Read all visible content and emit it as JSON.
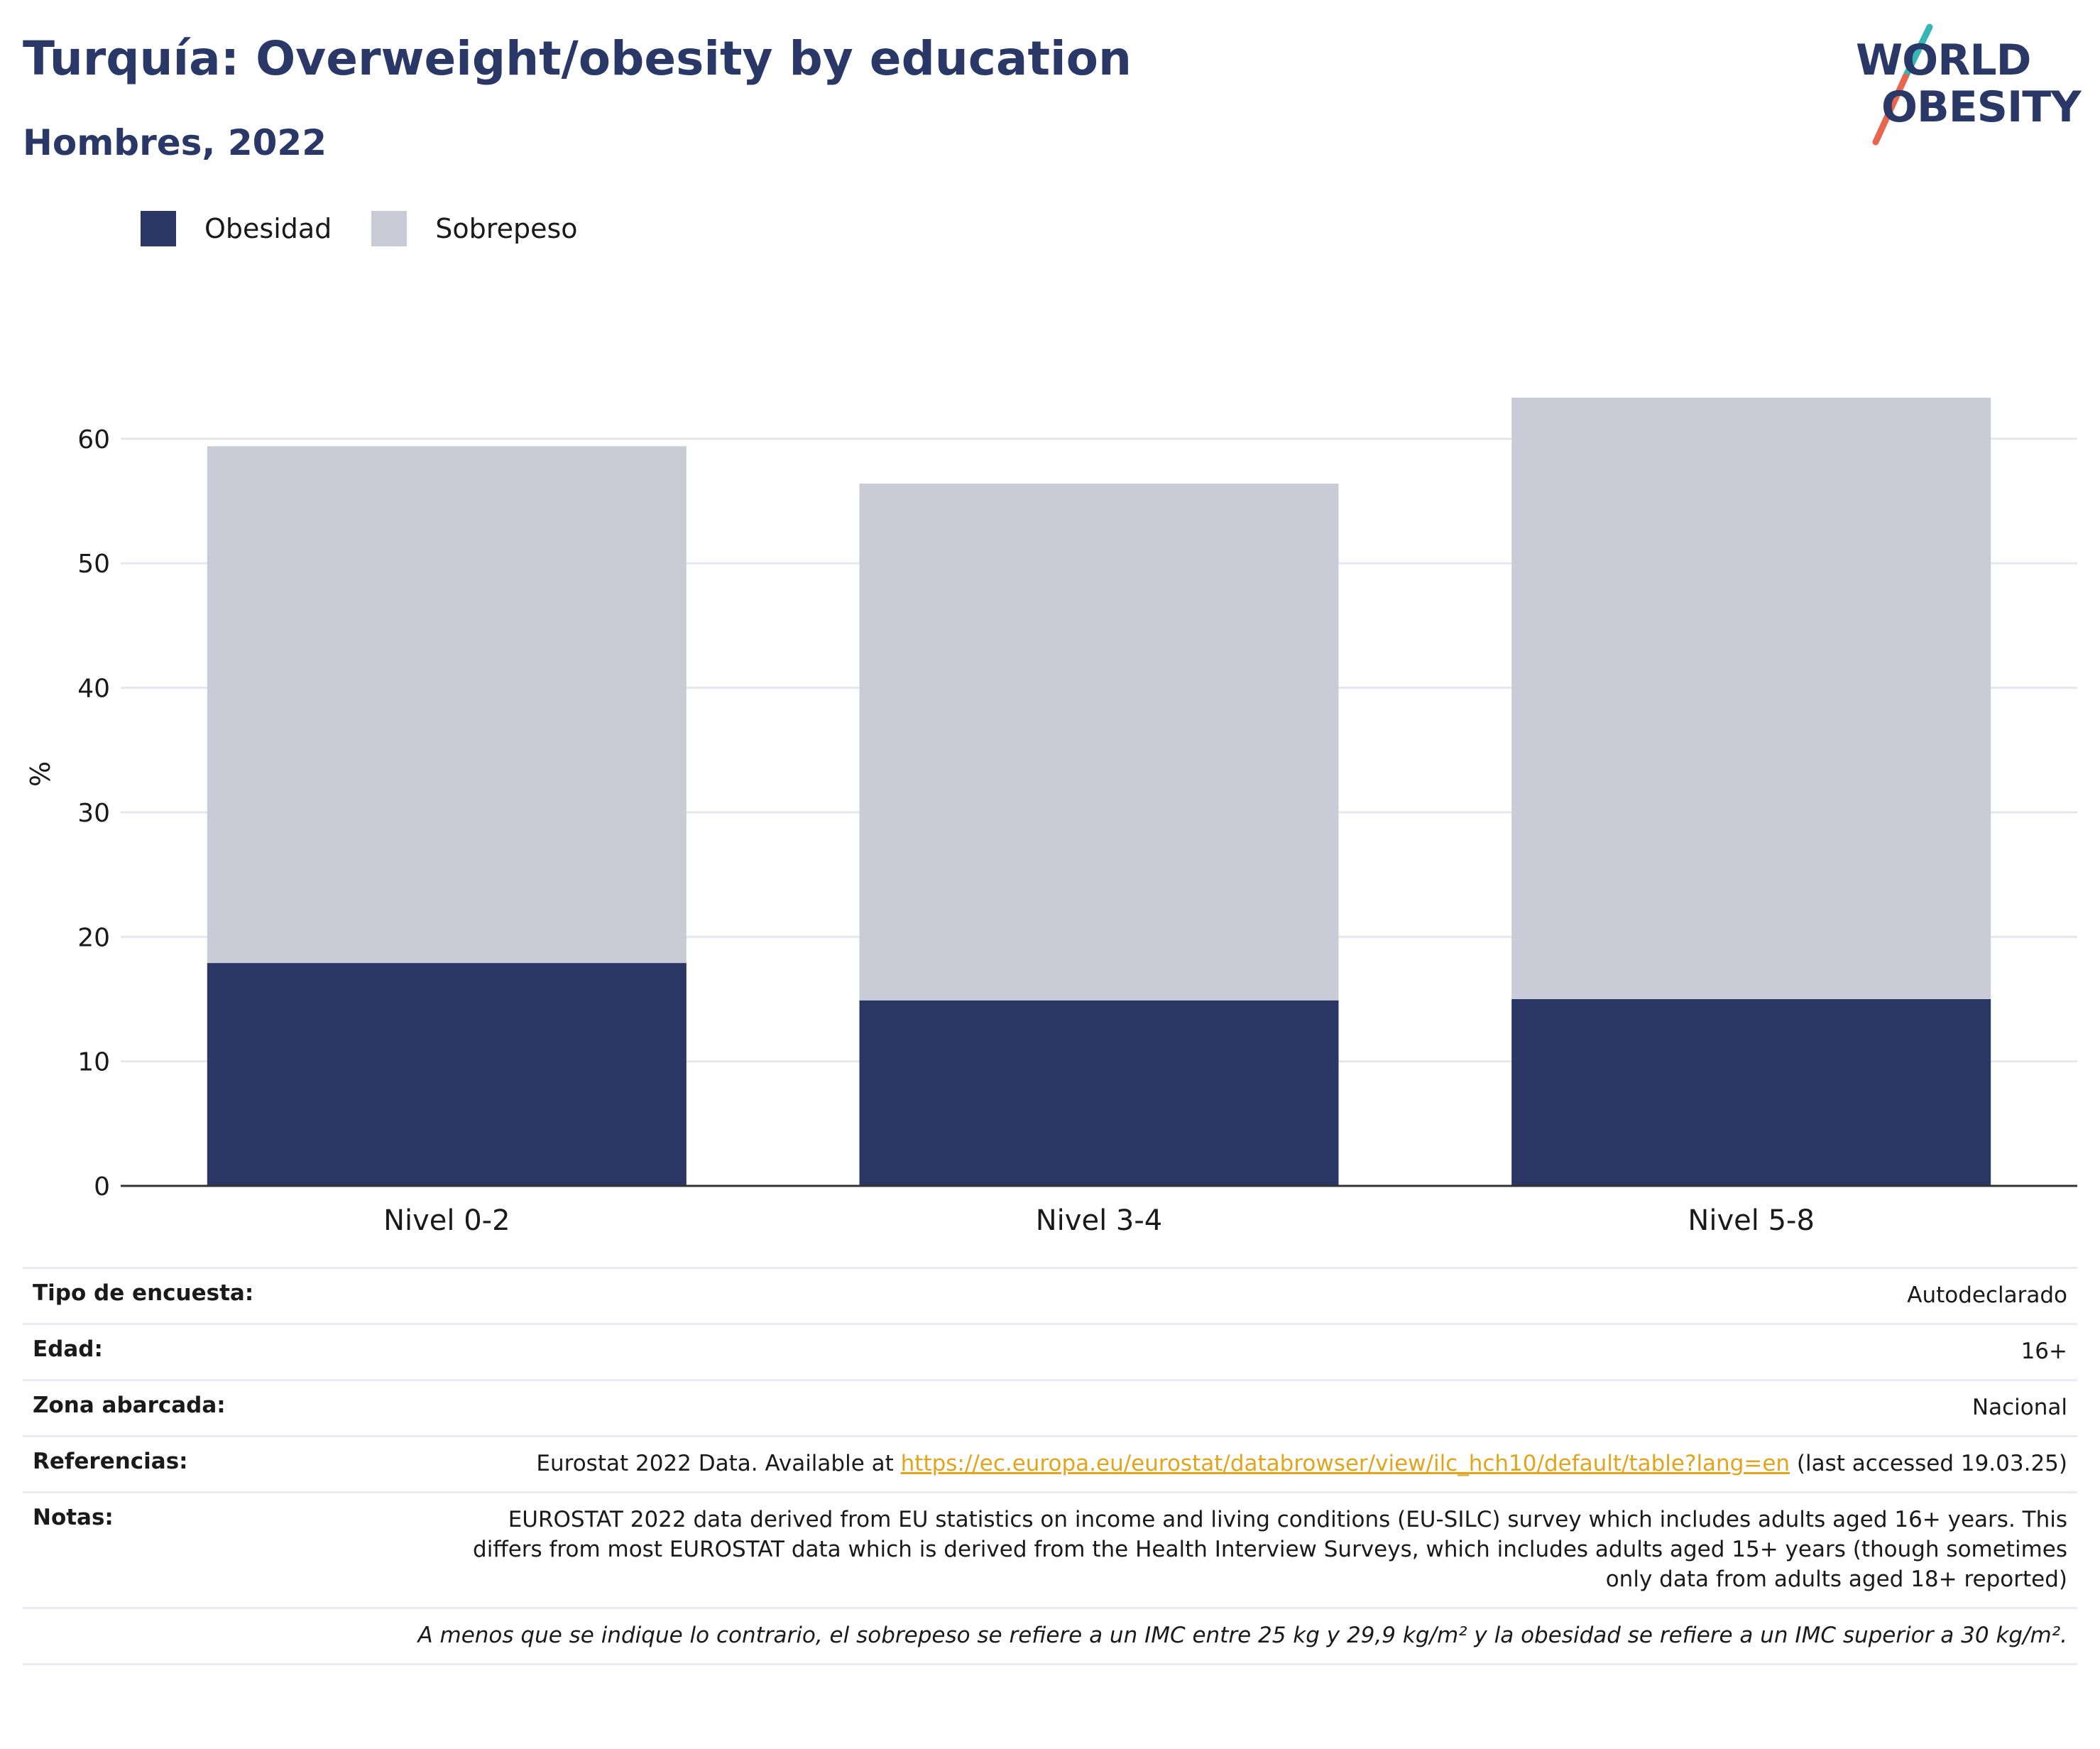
{
  "header": {
    "title": "Turquía: Overweight/obesity by education",
    "subtitle": "Hombres, 2022"
  },
  "logo": {
    "line1": "WORLD",
    "line2": "OBESITY",
    "colors": {
      "text": "#2a3868",
      "slash_top": "#35b6b4",
      "slash_bottom": "#e8664e"
    }
  },
  "colors": {
    "obesity": "#2a3663",
    "overweight": "#c9ccd7",
    "title": "#2a3868",
    "link": "#e3a41c"
  },
  "chart_data": {
    "type": "bar",
    "stacked": true,
    "categories": [
      "Nivel 0-2",
      "Nivel 3-4",
      "Nivel 5-8"
    ],
    "series": [
      {
        "name": "Obesidad",
        "values": [
          17.9,
          14.9,
          15.0
        ],
        "color": "#2a3663"
      },
      {
        "name": "Sobrepeso",
        "values": [
          41.5,
          41.5,
          48.3
        ],
        "color": "#c9ccd7"
      }
    ],
    "title": "Turquía: Overweight/obesity by education",
    "subtitle": "Hombres, 2022",
    "xlabel": "",
    "ylabel": "%",
    "ylim": [
      0,
      63.3
    ],
    "yticks": [
      0,
      10,
      20,
      30,
      40,
      50,
      60
    ],
    "grid": true,
    "legend": "top-left"
  },
  "info": {
    "rows": [
      {
        "key": "Tipo de encuesta:",
        "value": "Autodeclarado"
      },
      {
        "key": "Edad:",
        "value": "16+"
      },
      {
        "key": "Zona abarcada:",
        "value": "Nacional"
      }
    ],
    "references": {
      "key": "Referencias:",
      "prefix": "Eurostat 2022 Data. Available at ",
      "link": "https://ec.europa.eu/eurostat/databrowser/view/ilc_hch10/default/table?lang=en",
      "suffix": " (last accessed 19.03.25)"
    },
    "notes": {
      "key": "Notas:",
      "value": "EUROSTAT 2022 data derived from EU statistics on income and living conditions (EU-SILC) survey which includes adults aged 16+ years. This differs from most EUROSTAT data which is derived from the Health Interview Surveys, which includes adults aged 15+ years (though sometimes only data from adults aged 18+ reported)"
    },
    "footnote": "A menos que se indique lo contrario, el sobrepeso se refiere a un IMC entre 25 kg y 29,9 kg/m² y la obesidad se refiere a un IMC superior a 30 kg/m²."
  }
}
